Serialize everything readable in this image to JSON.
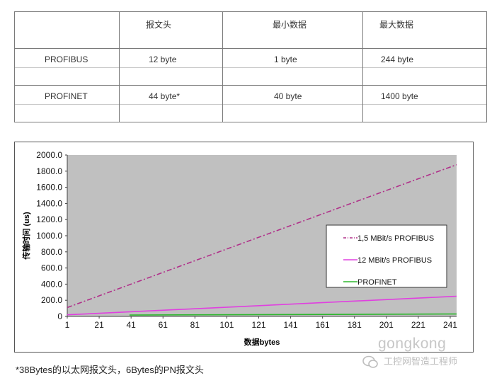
{
  "table": {
    "headers": [
      "",
      "报文头",
      "最小数据",
      "最大数据"
    ],
    "rows": [
      [
        "PROFIBUS",
        "12 byte",
        "1 byte",
        "244 byte"
      ],
      [
        "PROFINET",
        "44 byte*",
        "40 byte",
        "1400 byte"
      ]
    ]
  },
  "chart_data": {
    "type": "line",
    "xlabel": "数据bytes",
    "ylabel": "传输时间 (us)",
    "x_ticks": [
      1,
      21,
      41,
      61,
      81,
      101,
      121,
      141,
      161,
      181,
      201,
      221,
      241
    ],
    "y_ticks": [
      "0",
      "200.0",
      "400.0",
      "600.0",
      "800.0",
      "1000.0",
      "1200.0",
      "1400.0",
      "1600.0",
      "1800.0",
      "2000.0"
    ],
    "xlim": [
      1,
      245
    ],
    "ylim": [
      0,
      2000
    ],
    "legend_position": "right",
    "plot_background": "#c0c0c0",
    "series": [
      {
        "name": "1,5 MBit/s PROFIBUS",
        "style": "dashdot",
        "color": "#b0308a",
        "x": [
          1,
          245
        ],
        "y": [
          110,
          1880
        ]
      },
      {
        "name": "12 MBit/s PROFIBUS",
        "style": "solid",
        "color": "#e040e0",
        "x": [
          1,
          245
        ],
        "y": [
          20,
          250
        ]
      },
      {
        "name": "PROFINET",
        "style": "solid",
        "color": "#2eb82e",
        "x": [
          40,
          245
        ],
        "y": [
          17,
          30
        ]
      }
    ]
  },
  "footnote": "*38Bytes的以太网报文头，6Bytes的PN报文头",
  "watermark": {
    "brand": "gongkong",
    "subtitle": "工控网智造工程师",
    "icon": "chat-bubble-icon"
  }
}
